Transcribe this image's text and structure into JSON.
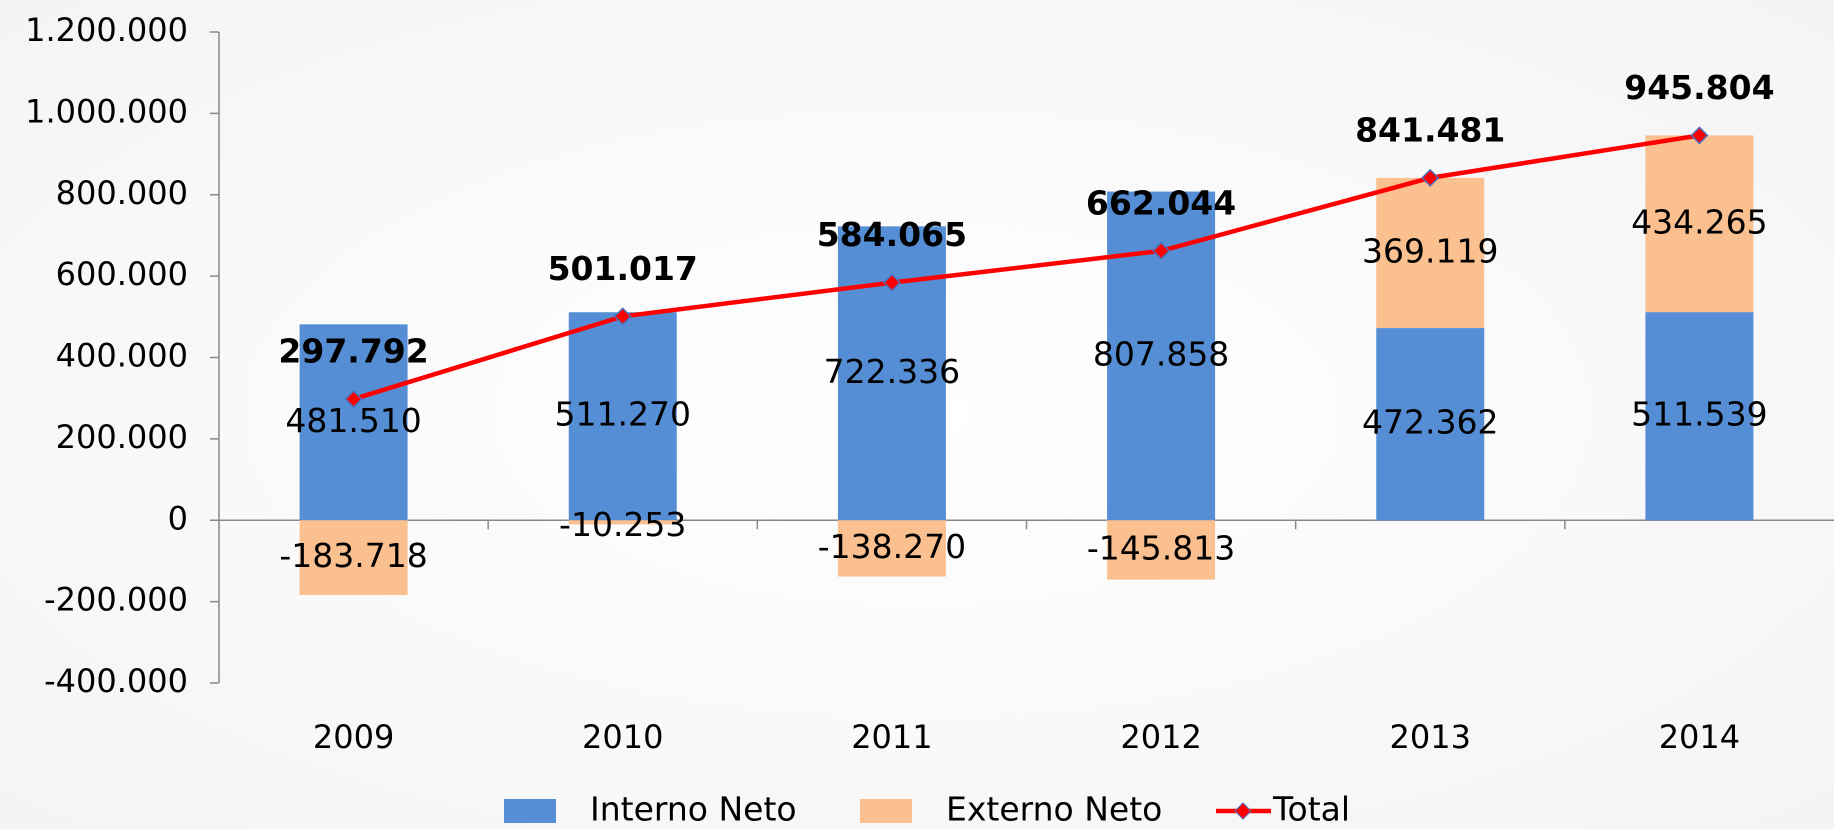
{
  "chart_data": {
    "type": "bar",
    "stacked": true,
    "categories": [
      "2009",
      "2010",
      "2011",
      "2012",
      "2013",
      "2014"
    ],
    "series": [
      {
        "name": "Interno Neto",
        "color": "#558ed5",
        "values": [
          481510,
          511270,
          722336,
          807858,
          472362,
          511539
        ],
        "value_labels": [
          "481.510",
          "511.270",
          "722.336",
          "807.858",
          "472.362",
          "511.539"
        ]
      },
      {
        "name": "Externo Neto",
        "color": "#fac090",
        "values": [
          -183718,
          -10253,
          -138270,
          -145813,
          369119,
          434265
        ],
        "value_labels": [
          "-183.718",
          "-10.253",
          "-138.270",
          "-145.813",
          "369.119",
          "434.265"
        ]
      },
      {
        "name": "Total",
        "type": "line",
        "color": "#ff0000",
        "values": [
          297792,
          501017,
          584065,
          662044,
          841481,
          945804
        ],
        "value_labels": [
          "297.792",
          "501.017",
          "584.065",
          "662.044",
          "841.481",
          "945.804"
        ]
      }
    ],
    "ylim": [
      -400000,
      1200000
    ],
    "yticks": [
      {
        "value": -400000,
        "label": "-400.000"
      },
      {
        "value": -200000,
        "label": "-200.000"
      },
      0,
      {
        "value": 200000,
        "label": "200.000"
      },
      {
        "value": 400000,
        "label": "400.000"
      },
      {
        "value": 600000,
        "label": "600.000"
      },
      {
        "value": 800000,
        "label": "800.000"
      },
      {
        "value": 1000000,
        "label": "1.000.000"
      },
      {
        "value": 1200000,
        "label": "1.200.000"
      }
    ],
    "legend": "bottom"
  }
}
